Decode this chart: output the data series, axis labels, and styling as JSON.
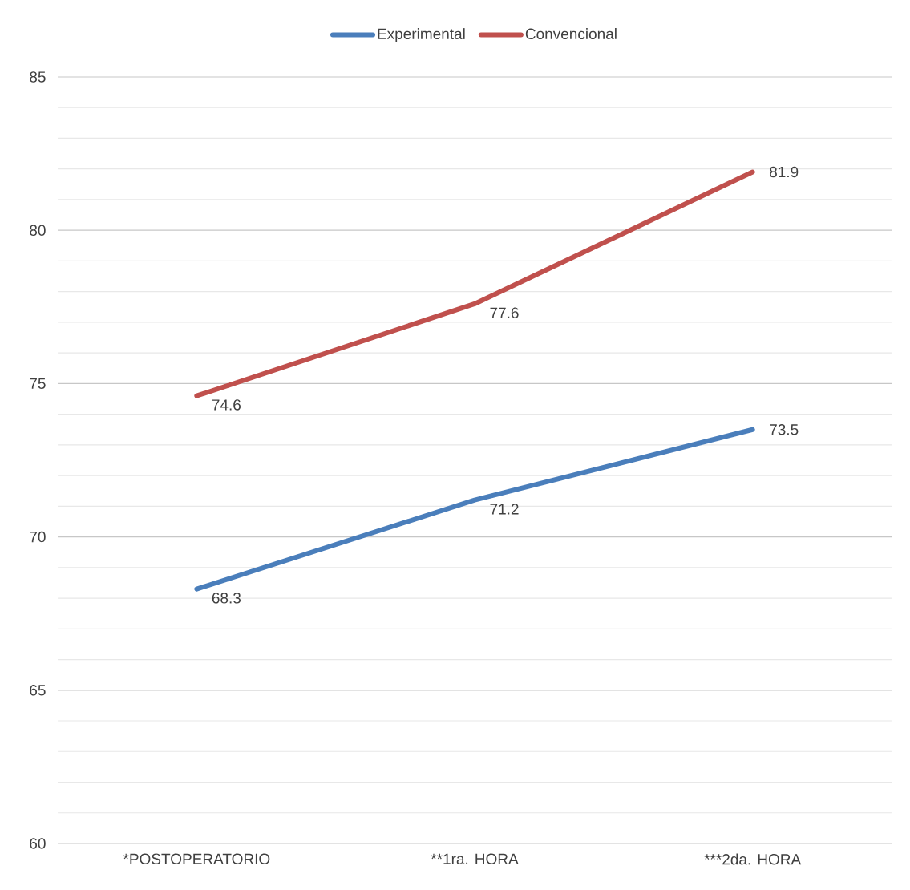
{
  "chart_data": {
    "type": "line",
    "categories": [
      "*POSTOPERATORIO",
      "**1ra. HORA",
      "***2da. HORA"
    ],
    "series": [
      {
        "name": "Experimental",
        "color": "#4a7ebb",
        "values": [
          68.3,
          71.2,
          73.5
        ]
      },
      {
        "name": "Convencional",
        "color": "#c0504d",
        "values": [
          74.6,
          77.6,
          81.9
        ]
      }
    ],
    "ylim": [
      60,
      85
    ],
    "yticks": [
      60,
      {
        "value": 61,
        "label": null
      },
      {
        "value": 62,
        "label": null
      },
      {
        "value": 63,
        "label": null
      },
      {
        "value": 64,
        "label": null
      },
      65,
      {
        "value": 66,
        "label": null
      },
      {
        "value": 67,
        "label": null
      },
      {
        "value": 68,
        "label": null
      },
      {
        "value": 69,
        "label": null
      },
      70,
      {
        "value": 71,
        "label": null
      },
      {
        "value": 72,
        "label": null
      },
      {
        "value": 73,
        "label": null
      },
      {
        "value": 74,
        "label": null
      },
      75,
      {
        "value": 76,
        "label": null
      },
      {
        "value": 77,
        "label": null
      },
      {
        "value": 78,
        "label": null
      },
      {
        "value": 79,
        "label": null
      },
      80,
      {
        "value": 81,
        "label": null
      },
      {
        "value": 82,
        "label": null
      },
      {
        "value": 83,
        "label": null
      },
      {
        "value": 84,
        "label": null
      },
      85
    ],
    "grid": "y",
    "legend": "top",
    "marker": "none",
    "line_style": "solid",
    "data_labels": true
  }
}
